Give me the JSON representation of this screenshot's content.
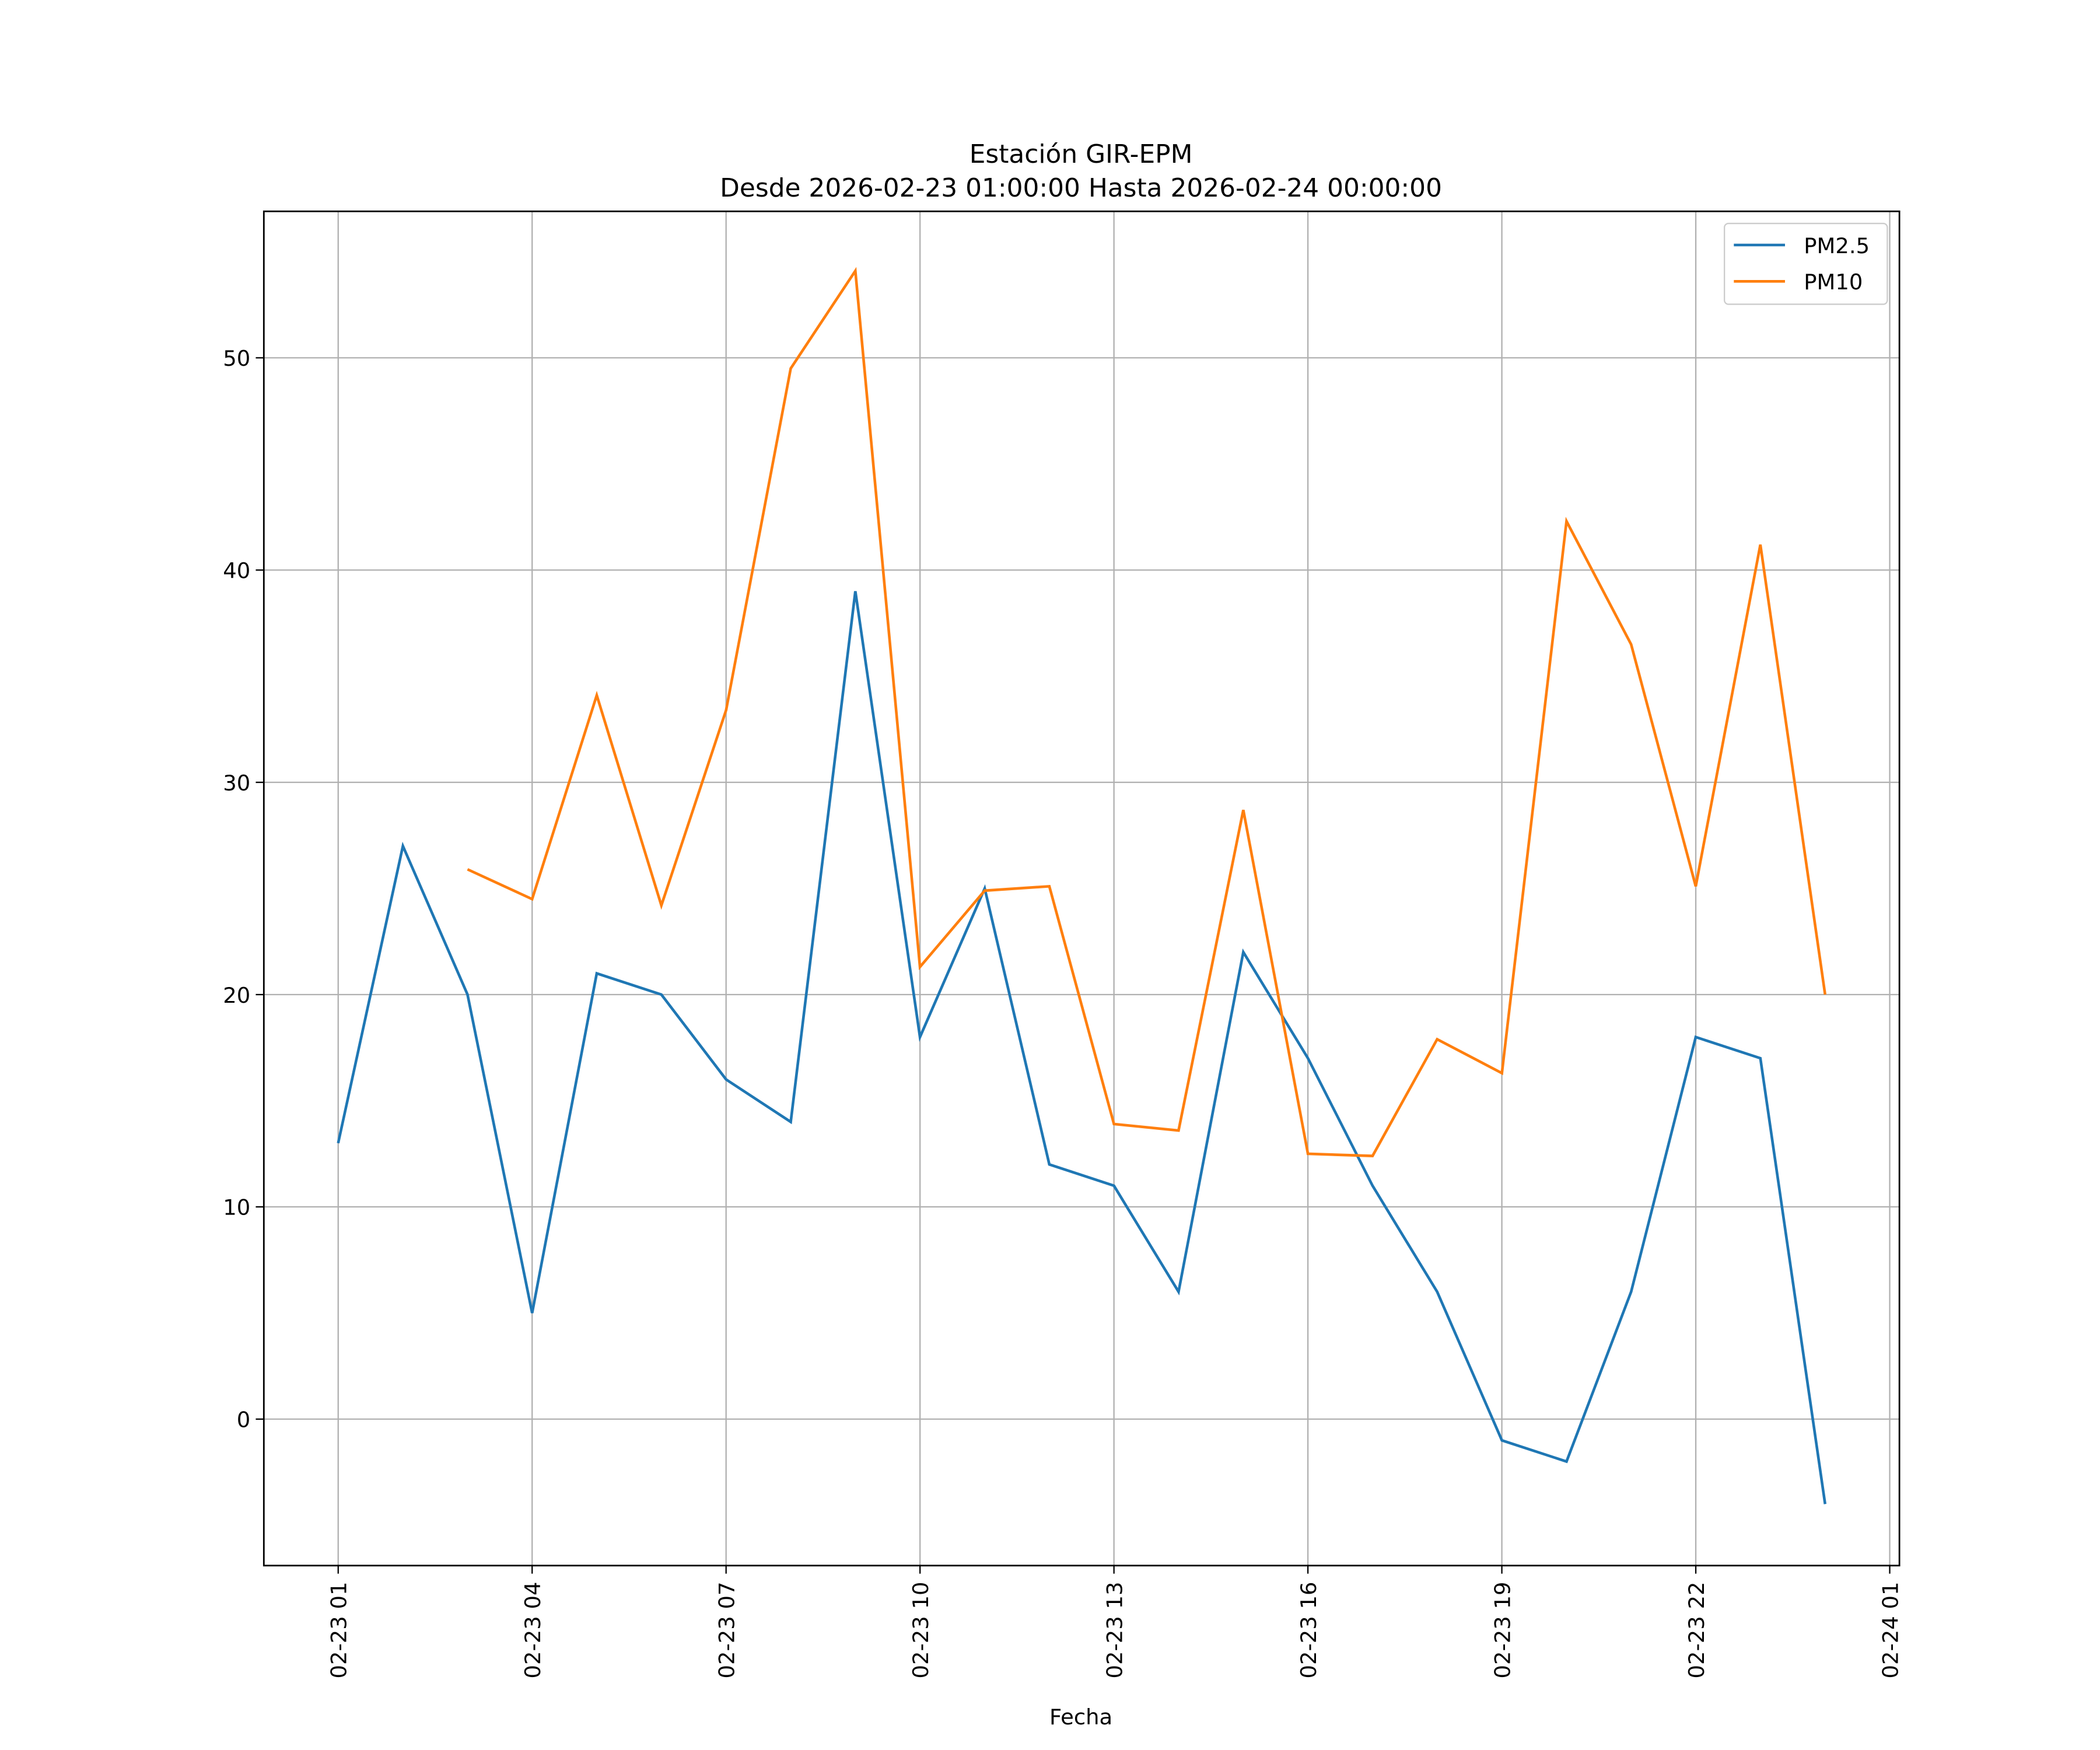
{
  "chart_data": {
    "type": "line",
    "title": "Estación GIR-EPM",
    "subtitle": "Desde 2026-02-23 01:00:00 Hasta 2026-02-24 00:00:00",
    "xlabel": "Fecha",
    "ylabel": "",
    "x": [
      "02-23 01",
      "02-23 02",
      "02-23 03",
      "02-23 04",
      "02-23 05",
      "02-23 06",
      "02-23 07",
      "02-23 08",
      "02-23 09",
      "02-23 10",
      "02-23 11",
      "02-23 12",
      "02-23 13",
      "02-23 14",
      "02-23 15",
      "02-23 16",
      "02-23 17",
      "02-23 18",
      "02-23 19",
      "02-23 20",
      "02-23 21",
      "02-23 22",
      "02-23 23",
      "02-24 00"
    ],
    "x_hours": [
      0,
      1,
      2,
      3,
      4,
      5,
      6,
      7,
      8,
      9,
      10,
      11,
      12,
      13,
      14,
      15,
      16,
      17,
      18,
      19,
      20,
      21,
      22,
      23
    ],
    "xticks": [
      {
        "label": "02-23 01",
        "hour": 0
      },
      {
        "label": "02-23 04",
        "hour": 3
      },
      {
        "label": "02-23 07",
        "hour": 6
      },
      {
        "label": "02-23 10",
        "hour": 9
      },
      {
        "label": "02-23 13",
        "hour": 12
      },
      {
        "label": "02-23 16",
        "hour": 15
      },
      {
        "label": "02-23 19",
        "hour": 18
      },
      {
        "label": "02-23 22",
        "hour": 21
      },
      {
        "label": "02-24 01",
        "hour": 24
      }
    ],
    "yticks": [
      0,
      10,
      20,
      30,
      40,
      50
    ],
    "xlim": [
      -1.15,
      24.15
    ],
    "ylim": [
      -6.9,
      56.9
    ],
    "grid": true,
    "legend_position": "top-right",
    "series": [
      {
        "name": "PM2.5",
        "color": "#1f77b4",
        "values": [
          13,
          27,
          20,
          5,
          21,
          20,
          16,
          14,
          39,
          18,
          25,
          12,
          11,
          6,
          22,
          17,
          11,
          6,
          -1,
          -2,
          6,
          18,
          17,
          -4
        ]
      },
      {
        "name": "PM10",
        "color": "#ff7f0e",
        "values": [
          null,
          null,
          25.9,
          24.5,
          34.1,
          24.2,
          33.4,
          49.5,
          54.1,
          21.3,
          24.9,
          25.1,
          13.9,
          13.6,
          28.7,
          12.5,
          12.4,
          17.9,
          16.3,
          42.3,
          36.5,
          25.1,
          41.2,
          20.0
        ]
      }
    ]
  }
}
